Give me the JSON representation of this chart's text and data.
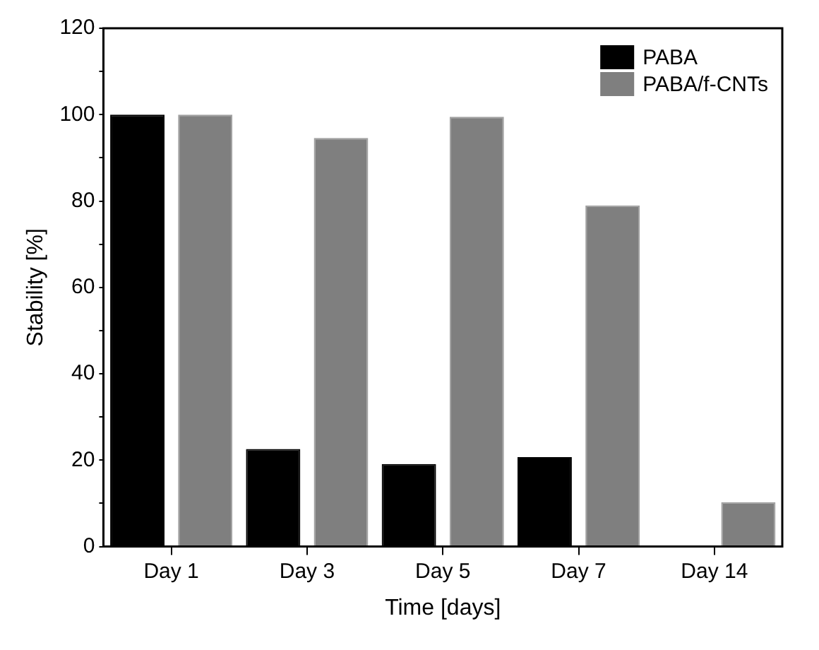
{
  "chart_data": {
    "type": "bar",
    "xlabel": "Time [days]",
    "ylabel": "Stability [%]",
    "categories": [
      "Day 1",
      "Day 3",
      "Day 5",
      "Day 7",
      "Day 14"
    ],
    "series": [
      {
        "name": "PABA",
        "color": "#000000",
        "values": [
          100,
          22.6,
          19.1,
          20.7,
          0
        ]
      },
      {
        "name": "PABA/f-CNTs",
        "color": "#7f7f7f",
        "values": [
          100,
          94.6,
          99.5,
          79.0,
          10.3
        ]
      }
    ],
    "ylim": [
      0,
      120
    ],
    "yticks": [
      0,
      {
        "value": 10,
        "label": null
      },
      20,
      {
        "value": 30,
        "label": null
      },
      40,
      {
        "value": 50,
        "label": null
      },
      60,
      {
        "value": 70,
        "label": null
      },
      80,
      {
        "value": 90,
        "label": null
      },
      100,
      {
        "value": 110,
        "label": null
      },
      120
    ],
    "grid": false,
    "legend": "top right"
  }
}
